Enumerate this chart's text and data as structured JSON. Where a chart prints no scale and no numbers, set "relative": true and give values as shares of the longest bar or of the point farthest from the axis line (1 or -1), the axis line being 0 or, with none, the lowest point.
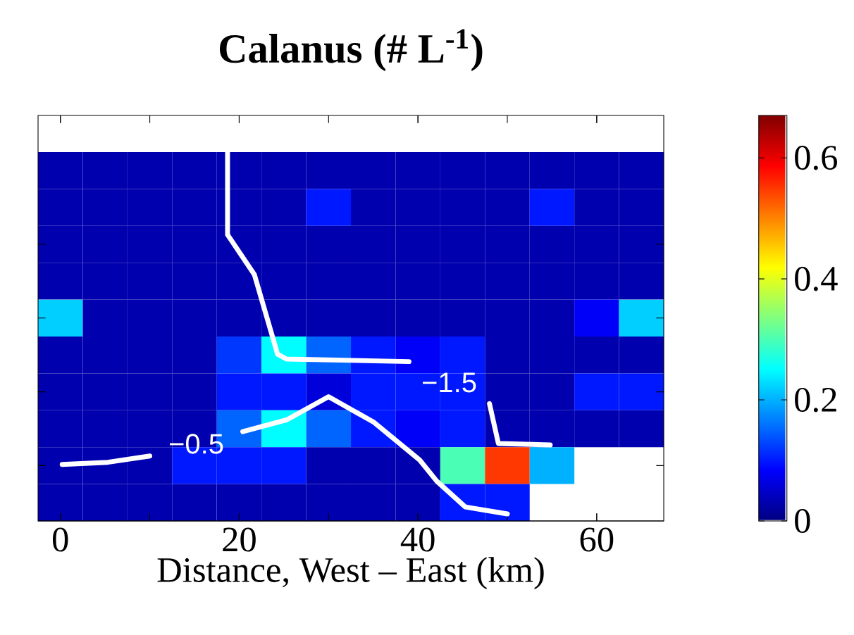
{
  "chart_data": [
    {
      "type": "heatmap",
      "title": "Calanus (# L$^{-1}$)",
      "categories": [
        null,
        null,
        null,
        null,
        null,
        null,
        null,
        null,
        null,
        null,
        null,
        null,
        null,
        null
      ],
      "y_categories": [
        null,
        null,
        null,
        null,
        null,
        null,
        null,
        null,
        null,
        null
      ],
      "cells": [
        [
          0.03,
          0.03,
          0.03,
          0.03,
          0.03,
          0.03,
          0.03,
          0.03,
          0.03,
          0.03,
          0.03,
          0.03,
          0.03,
          0.03
        ],
        [
          0.03,
          0.03,
          0.03,
          0.03,
          0.03,
          0.03,
          0.1,
          0.03,
          0.03,
          0.03,
          0.03,
          0.1,
          0.03,
          0.03
        ],
        [
          0.03,
          0.03,
          0.03,
          0.03,
          0.03,
          0.03,
          0.03,
          0.03,
          0.03,
          0.03,
          0.03,
          0.03,
          0.03,
          0.03
        ],
        [
          0.03,
          0.03,
          0.03,
          0.03,
          0.03,
          0.03,
          0.03,
          0.03,
          0.03,
          0.03,
          0.03,
          0.03,
          0.03,
          0.03
        ],
        [
          0.22,
          0.03,
          0.03,
          0.03,
          0.03,
          0.03,
          0.03,
          0.03,
          0.03,
          0.03,
          0.03,
          0.03,
          0.08,
          0.22
        ],
        [
          0.03,
          0.03,
          0.03,
          0.03,
          0.12,
          0.25,
          0.15,
          0.1,
          0.08,
          0.1,
          0.03,
          0.03,
          0.03,
          0.03
        ],
        [
          0.03,
          0.03,
          0.03,
          0.03,
          0.1,
          0.1,
          0.06,
          0.1,
          0.1,
          0.1,
          0.03,
          0.03,
          0.1,
          0.1
        ],
        [
          0.03,
          0.03,
          0.03,
          0.03,
          0.15,
          0.25,
          0.15,
          0.1,
          0.08,
          0.1,
          0.03,
          0.03,
          0.03,
          0.03
        ],
        [
          0.03,
          0.03,
          0.03,
          0.1,
          0.1,
          0.1,
          0.03,
          0.03,
          0.03,
          0.3,
          0.55,
          0.2,
          null,
          null
        ],
        [
          0.03,
          0.03,
          0.03,
          0.03,
          0.03,
          0.03,
          0.03,
          0.03,
          0.03,
          0.1,
          0.1,
          null,
          null,
          null
        ]
      ],
      "clim": [
        0,
        0.67
      ],
      "cticks": [
        0,
        0.2,
        0.4,
        0.6
      ]
    },
    {
      "type": "line",
      "relative": true,
      "xlim": [
        -2.5,
        67.5
      ],
      "xticks": [
        0,
        20,
        40,
        60
      ],
      "xlabel": "Distance, West – East (km)",
      "tick_labels": "x",
      "series": [
        {
          "color": "#ffffff",
          "x": [
            18.7,
            18.7,
            21.7,
            24.3,
            25.3,
            39.0,
            43.9,
            48.0,
            49.0,
            54.8
          ],
          "values": [
            1.0,
            0.776,
            0.668,
            0.452,
            0.439,
            0.432,
            null,
            0.318,
            0.21,
            0.206
          ]
        },
        {
          "color": "#ffffff",
          "x": [
            0.2,
            5.3,
            10.0,
            15.3,
            20.4,
            25.3,
            30.0,
            35.1,
            40.2,
            42.1,
            45.3,
            50.0
          ],
          "values": [
            0.153,
            0.159,
            0.176,
            null,
            0.242,
            0.274,
            0.337,
            0.267,
            0.165,
            0.108,
            0.038,
            0.019
          ]
        }
      ],
      "annotations": [
        "−1.5",
        "−0.5"
      ]
    }
  ]
}
